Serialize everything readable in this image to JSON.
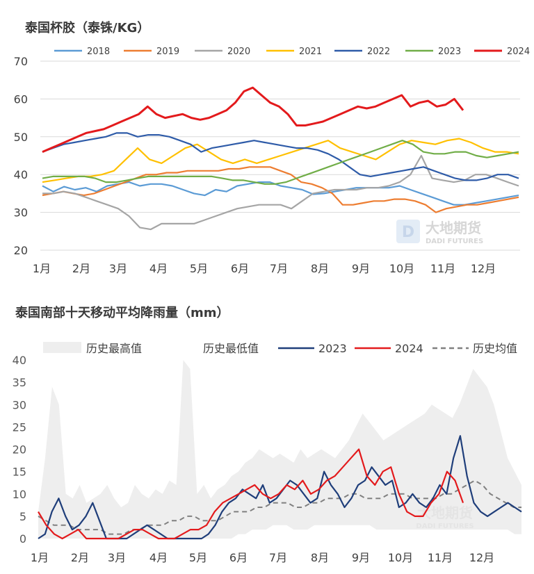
{
  "chart_data": [
    {
      "type": "line",
      "title": "泰国杯胶（泰铢/KG）",
      "ylim": [
        20,
        70
      ],
      "yticks": [
        "20",
        "30",
        "40",
        "50",
        "60",
        "70"
      ],
      "xticks": [
        "1月",
        "2月",
        "3月",
        "4月",
        "5月",
        "6月",
        "7月",
        "8月",
        "9月",
        "10月",
        "11月",
        "12月"
      ],
      "grid": true,
      "legend_position": "top",
      "watermark": {
        "cn": "大地期货",
        "en": "DADI FUTURES"
      },
      "series": [
        {
          "name": "2018",
          "color": "#5B9BD5",
          "values": [
            37,
            35.5,
            36.8,
            36,
            36.5,
            35.5,
            37,
            37.5,
            38,
            37,
            37.5,
            37.5,
            37,
            36,
            35,
            34.5,
            36,
            35.5,
            37,
            37.5,
            38,
            38,
            37,
            36.5,
            36,
            34.8,
            35,
            35.5,
            36,
            36.5,
            36.5,
            36.5,
            36.5,
            37,
            36,
            35,
            34,
            33,
            32,
            32,
            32.5,
            33,
            33.5,
            34,
            34.5
          ]
        },
        {
          "name": "2019",
          "color": "#ED7D31",
          "values": [
            34.5,
            35,
            35.5,
            35,
            34.5,
            35,
            36,
            37,
            38,
            39,
            40,
            40,
            40.5,
            40.5,
            41,
            41,
            41,
            41,
            41.5,
            41.5,
            42,
            42,
            42,
            41,
            40,
            38,
            37.5,
            36.5,
            35,
            32,
            32,
            32.5,
            33,
            33,
            33.5,
            33.5,
            33,
            32,
            30,
            31,
            31.5,
            32,
            32,
            32.5,
            33,
            33.5,
            34
          ]
        },
        {
          "name": "2020",
          "color": "#A5A5A5",
          "values": [
            35,
            35,
            35.5,
            35,
            34,
            33,
            32,
            31,
            29,
            26,
            25.5,
            27,
            27,
            27,
            27,
            28,
            29,
            30,
            31,
            31.5,
            32,
            32,
            32,
            31,
            33,
            35,
            35.5,
            36,
            36,
            36,
            36.5,
            36.5,
            37,
            38,
            40,
            45,
            39,
            38.5,
            38,
            38.5,
            40,
            40,
            39,
            38,
            37
          ]
        },
        {
          "name": "2021",
          "color": "#FFC000",
          "values": [
            38,
            38.5,
            39,
            39.5,
            39.5,
            40,
            41,
            44,
            47,
            44,
            43,
            45,
            47,
            48,
            46,
            44,
            43,
            44,
            43,
            44,
            45,
            46,
            47,
            48,
            49,
            47,
            46,
            45,
            44,
            46,
            48,
            49,
            48.5,
            48,
            49,
            49.5,
            48.5,
            47,
            46,
            46,
            45.5
          ]
        },
        {
          "name": "2022",
          "color": "#2E5BA8",
          "values": [
            46,
            47,
            48,
            48.5,
            49,
            49.5,
            50,
            51,
            51,
            50,
            50.5,
            50.5,
            50,
            49,
            48,
            46,
            47,
            47.5,
            48,
            48.5,
            49,
            48.5,
            48,
            47.5,
            47,
            47,
            46.5,
            45.5,
            44,
            42,
            40,
            39.5,
            40,
            40.5,
            41,
            41.5,
            42,
            41,
            40,
            39,
            38.5,
            38.5,
            39,
            40,
            40,
            39
          ]
        },
        {
          "name": "2023",
          "color": "#70AD47",
          "values": [
            39,
            39.5,
            39.5,
            39.5,
            39.5,
            39,
            38,
            38,
            38.5,
            39,
            39.5,
            39.5,
            39.5,
            39.5,
            39.5,
            39.5,
            39.5,
            39,
            38.5,
            38.5,
            38,
            37.5,
            37.5,
            38,
            39,
            40,
            41,
            42,
            43,
            44,
            45,
            46,
            47,
            48,
            49,
            48,
            46,
            45.5,
            45.5,
            46,
            46,
            45,
            44.5,
            45,
            45.5,
            46
          ]
        },
        {
          "name": "2024",
          "color": "#E31A1C",
          "values": [
            46,
            47,
            48,
            49,
            50,
            51,
            51.5,
            52,
            53,
            54,
            55,
            56,
            58,
            56,
            55,
            55.5,
            56,
            55,
            54.5,
            55,
            56,
            57,
            59,
            62,
            63,
            61,
            59,
            58,
            56,
            53,
            53,
            53.5,
            54,
            55,
            56,
            57,
            58,
            57.5,
            58,
            59,
            60,
            61,
            58,
            59,
            59.5,
            58,
            58.5,
            60,
            57
          ]
        }
      ]
    },
    {
      "type": "area",
      "title": "泰国南部十天移动平均降雨量（mm）",
      "ylim": [
        0,
        40
      ],
      "yticks": [
        "0",
        "5",
        "10",
        "15",
        "20",
        "25",
        "30",
        "35",
        "40"
      ],
      "xticks": [
        "1月",
        "2月",
        "3月",
        "4月",
        "5月",
        "6月",
        "7月",
        "8月",
        "9月",
        "10月",
        "11月",
        "12月"
      ],
      "grid": false,
      "legend_position": "top",
      "watermark": {
        "cn": "大地期货",
        "en": "DADI FUTURES"
      },
      "series": [
        {
          "name": "历史最高值",
          "color": "#EEEEEE",
          "values": [
            6,
            18,
            34,
            30,
            10,
            9,
            12,
            8,
            9,
            10,
            12,
            9,
            7,
            8,
            12,
            10,
            9,
            11,
            10,
            13,
            12,
            40,
            38,
            10,
            12,
            9,
            11,
            12,
            14,
            15,
            17,
            18,
            20,
            19,
            18,
            19,
            18,
            17,
            20,
            18,
            19,
            20,
            19,
            18,
            20,
            22,
            25,
            28,
            26,
            24,
            22,
            23,
            24,
            25,
            26,
            27,
            28,
            30,
            29,
            28,
            27,
            30,
            34,
            38,
            36,
            34,
            30,
            24,
            18,
            15,
            12
          ]
        },
        {
          "name": "历史最低值",
          "color": "#FFFFFF",
          "values": [
            0,
            0,
            0,
            0,
            0,
            0,
            0,
            0,
            0,
            0,
            0,
            0,
            0,
            0,
            0,
            0,
            0,
            0,
            0,
            0,
            0,
            0,
            0,
            0,
            0,
            0,
            0,
            0,
            0,
            1,
            1,
            2,
            2,
            2,
            3,
            3,
            3,
            2,
            2,
            2,
            3,
            3,
            3,
            3,
            3,
            3,
            3,
            3,
            3,
            2,
            2,
            2,
            2,
            2,
            2,
            2,
            2,
            2,
            2,
            2,
            2,
            2,
            2,
            2,
            2,
            2,
            2,
            2,
            2,
            1,
            1
          ]
        },
        {
          "name": "2023",
          "color": "#1F3E7A",
          "values": [
            0,
            1,
            6,
            9,
            5,
            2,
            3,
            5,
            8,
            4,
            0,
            0,
            0,
            0,
            1,
            2,
            3,
            2,
            1,
            0,
            0,
            0,
            0,
            0,
            0,
            1,
            3,
            6,
            8,
            9,
            11,
            10,
            9,
            12,
            8,
            9,
            11,
            13,
            12,
            10,
            8,
            9,
            15,
            12,
            10,
            7,
            9,
            12,
            13,
            16,
            14,
            12,
            13,
            7,
            8,
            10,
            8,
            7,
            9,
            12,
            10,
            18,
            23,
            14,
            8,
            6,
            5,
            6,
            7,
            8,
            7,
            6
          ]
        },
        {
          "name": "2024",
          "color": "#E31A1C",
          "values": [
            6,
            3,
            1,
            0,
            1,
            2,
            0,
            0,
            0,
            0,
            0,
            1,
            2,
            2,
            1,
            0,
            0,
            0,
            1,
            2,
            2,
            3,
            6,
            8,
            9,
            10,
            11,
            12,
            10,
            9,
            10,
            12,
            11,
            13,
            10,
            11,
            13,
            14,
            16,
            18,
            20,
            14,
            12,
            15,
            16,
            10,
            6,
            5,
            5,
            8,
            10,
            15,
            13,
            8
          ]
        },
        {
          "name": "历史均值",
          "color": "#808080",
          "values": [
            5,
            4,
            3,
            3,
            3,
            2,
            2,
            2,
            2,
            1,
            1,
            1,
            2,
            2,
            3,
            3,
            3,
            4,
            4,
            5,
            5,
            4,
            4,
            4,
            5,
            6,
            6,
            6,
            7,
            7,
            8,
            8,
            8,
            7,
            7,
            8,
            8,
            9,
            9,
            9,
            10,
            10,
            9,
            9,
            9,
            10,
            10,
            10,
            9,
            9,
            9,
            9,
            10,
            10,
            11,
            12,
            13,
            12,
            10,
            9,
            8,
            7,
            7
          ]
        }
      ]
    }
  ]
}
